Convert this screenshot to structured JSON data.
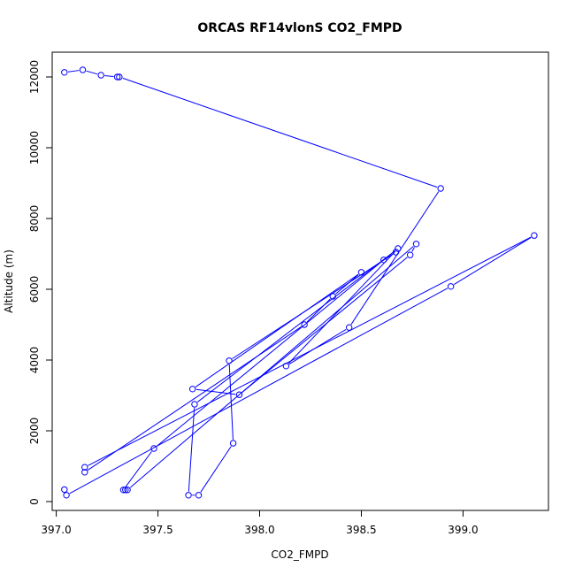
{
  "chart_data": {
    "type": "line",
    "title": "ORCAS RF14vlonS CO2_FMPD",
    "xlabel": "CO2_FMPD",
    "ylabel": "Altitude (m)",
    "xlim": [
      396.98,
      399.42
    ],
    "ylim": [
      -250,
      12700
    ],
    "xticks": [
      397.0,
      397.5,
      398.0,
      398.5,
      399.0
    ],
    "xtick_labels": [
      "397.0",
      "397.5",
      "398.0",
      "398.5",
      "399.0"
    ],
    "yticks": [
      0,
      2000,
      4000,
      6000,
      8000,
      10000,
      12000
    ],
    "ytick_labels": [
      "0",
      "2000",
      "4000",
      "6000",
      "8000",
      "10000",
      "12000"
    ],
    "grid": false,
    "legend": "none",
    "series": [
      {
        "color": "#0000ff",
        "marker": "open-circle",
        "points": [
          {
            "x": 397.04,
            "y": 12130
          },
          {
            "x": 397.13,
            "y": 12200
          },
          {
            "x": 397.22,
            "y": 12050
          },
          {
            "x": 397.3,
            "y": 12000
          },
          {
            "x": 397.31,
            "y": 12000
          },
          {
            "x": 398.89,
            "y": 8850
          },
          {
            "x": 398.44,
            "y": 4920
          },
          {
            "x": 398.13,
            "y": 3830
          },
          {
            "x": 398.68,
            "y": 7150
          },
          {
            "x": 397.68,
            "y": 2750
          },
          {
            "x": 397.65,
            "y": 180
          },
          {
            "x": 397.7,
            "y": 180
          },
          {
            "x": 397.87,
            "y": 1650
          },
          {
            "x": 397.85,
            "y": 3980
          },
          {
            "x": 398.67,
            "y": 7050
          },
          {
            "x": 398.61,
            "y": 6830
          },
          {
            "x": 397.48,
            "y": 1500
          },
          {
            "x": 397.33,
            "y": 330
          },
          {
            "x": 397.34,
            "y": 330
          },
          {
            "x": 397.35,
            "y": 330
          },
          {
            "x": 398.77,
            "y": 7280
          },
          {
            "x": 398.74,
            "y": 6970
          },
          {
            "x": 397.9,
            "y": 3020
          },
          {
            "x": 397.67,
            "y": 3180
          },
          {
            "x": 398.5,
            "y": 6480
          },
          {
            "x": 398.36,
            "y": 5800
          },
          {
            "x": 398.22,
            "y": 5000
          },
          {
            "x": 397.14,
            "y": 830
          },
          {
            "x": 397.14,
            "y": 970
          },
          {
            "x": 399.35,
            "y": 7520
          },
          {
            "x": 398.94,
            "y": 6080
          },
          {
            "x": 397.05,
            "y": 180
          },
          {
            "x": 397.04,
            "y": 340
          }
        ]
      }
    ]
  }
}
